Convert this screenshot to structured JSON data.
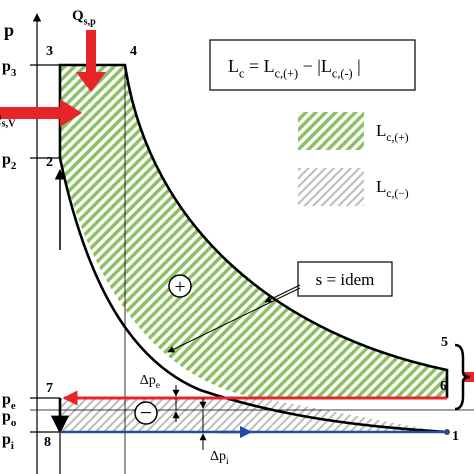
{
  "axis_label": "p",
  "pressure_labels": [
    {
      "main": "p",
      "sub": "3"
    },
    {
      "main": "p",
      "sub": "2"
    },
    {
      "main": "p",
      "sub": "e"
    },
    {
      "main": "p",
      "sub": "o"
    },
    {
      "main": "p",
      "sub": "i"
    }
  ],
  "points": [
    "1",
    "2",
    "3",
    "4",
    "5",
    "6",
    "7",
    "8"
  ],
  "heat_inputs": [
    {
      "main": "Q",
      "sub": "s,p"
    },
    {
      "main": "Q",
      "sub": "s,V"
    }
  ],
  "equation": [
    {
      "main": "L",
      "sub": "c"
    },
    {
      "main": " = L",
      "sub": "c,(+)"
    },
    {
      "main": " − |L",
      "sub": "c,(-)"
    },
    {
      "main": " |"
    }
  ],
  "legend": [
    {
      "main": "L",
      "sub": "c,(+)"
    },
    {
      "main": "L",
      "sub": "c,(−)"
    }
  ],
  "callout": "s = idem",
  "signs": [
    "+",
    "−"
  ],
  "pressure_drops": [
    {
      "main": "Δp",
      "sub": "e"
    },
    {
      "main": "Δp",
      "sub": "i"
    }
  ]
}
